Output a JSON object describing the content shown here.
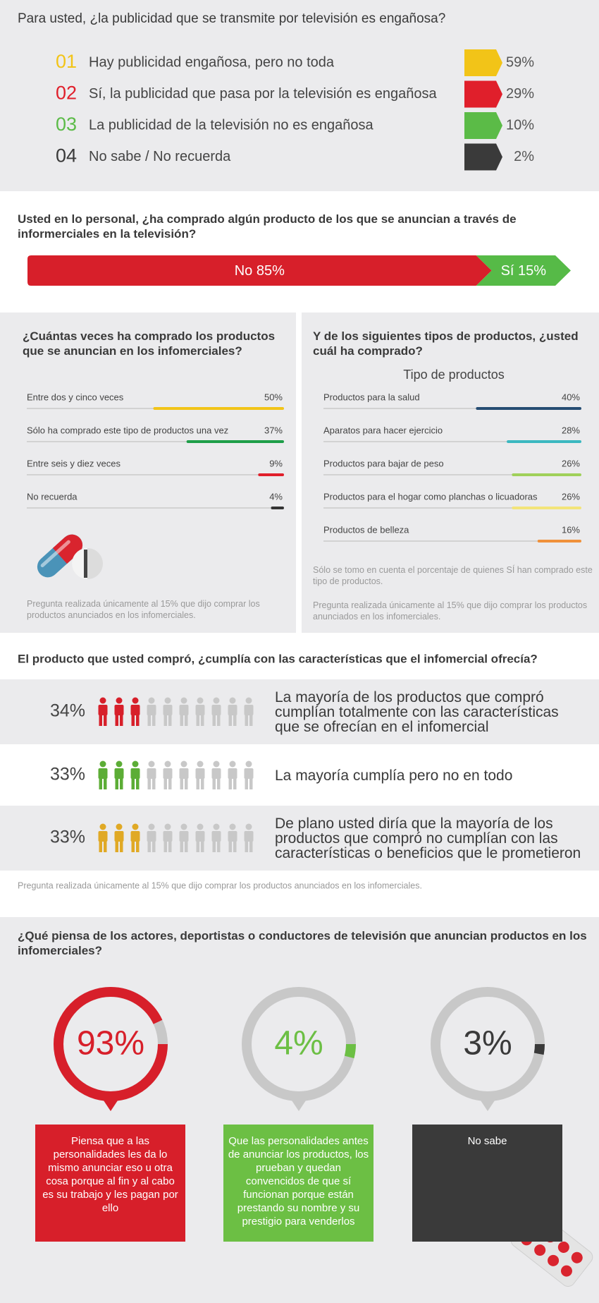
{
  "chart_data": [
    {
      "type": "ranked-list",
      "title": "Para usted, ¿la publicidad que se transmite por televisión es engañosa?",
      "numbers": [
        "01",
        "02",
        "03",
        "04"
      ],
      "categories": [
        "Hay publicidad engañosa, pero no toda",
        "Sí, la publicidad que pasa por la televisión es engañosa",
        "La publicidad de la televisión no es engañosa",
        "No sabe / No recuerda"
      ],
      "values": [
        59,
        29,
        10,
        2
      ],
      "value_labels": [
        "59%",
        "29%",
        "10%",
        "2%"
      ],
      "colors": [
        "#f2c418",
        "#e01f2b",
        "#5bbb47",
        "#3a3a3a"
      ]
    },
    {
      "type": "stacked-bar",
      "title": "Usted en lo personal, ¿ha comprado algún producto de los que se anuncian a través de informerciales en la televisión?",
      "xlim": [
        0,
        100
      ],
      "series": [
        {
          "color": "#d71f2a",
          "values": [
            85
          ],
          "value_labels": [
            "No 85%"
          ]
        },
        {
          "color": "#56ba47",
          "values": [
            15
          ],
          "value_labels": [
            "Sí 15%"
          ]
        }
      ]
    },
    {
      "type": "progress",
      "title": "¿Cuántas veces ha comprado los productos que se anuncian en los infomerciales?",
      "categories": [
        "Entre dos y cinco veces",
        "Sólo ha comprado este tipo de productos una vez",
        "Entre seis y diez veces",
        "No recuerda"
      ],
      "values": [
        50,
        37,
        9,
        4
      ],
      "value_labels": [
        "50%",
        "37%",
        "9%",
        "4%"
      ],
      "colors": [
        "#f2c418",
        "#1e9e48",
        "#e01f2b",
        "#333333"
      ],
      "xlim": [
        0,
        100
      ],
      "notes": [
        "Pregunta realizada únicamente al 15% que dijo comprar los productos anunciados en los infomerciales."
      ]
    },
    {
      "type": "progress",
      "title": "Y de los siguientes tipos de productos, ¿usted cuál ha comprado?",
      "subtitle": "Tipo de productos",
      "categories": [
        "Productos para la salud",
        "Aparatos para hacer ejercicio",
        "Productos para bajar de peso",
        "Productos para el hogar como planchas o licuadoras",
        "Productos de belleza"
      ],
      "values": [
        40,
        28,
        26,
        26,
        16
      ],
      "value_labels": [
        "40%",
        "28%",
        "26%",
        "26%",
        "16%"
      ],
      "colors": [
        "#264d73",
        "#3bb8c0",
        "#9fd05a",
        "#f3e47a",
        "#f0913a"
      ],
      "xlim": [
        0,
        100
      ],
      "notes": [
        "Sólo se tomo en cuenta el porcentaje de quienes SÍ han comprado este tipo de productos.",
        "Pregunta realizada únicamente al 15% que dijo comprar los productos anunciados en los infomerciales."
      ]
    },
    {
      "type": "pictogram",
      "title": "El producto que usted compró, ¿cumplía con las características que el infomercial ofrecía?",
      "categories": [
        "La mayoría de los productos que compró cumplían totalmente con las características que se ofrecían en el infomercial",
        "La mayoría cumplía pero no en todo",
        "De plano usted diría que la mayoría de los productos que compró no cumplían con las características o beneficios que le prometieron"
      ],
      "values": [
        34,
        33,
        33
      ],
      "value_labels": [
        "34%",
        "33%",
        "33%"
      ],
      "colors": [
        "#d71f2a",
        "#5cad36",
        "#e0a925"
      ],
      "xlim": [
        0,
        100
      ],
      "notes": [
        "Pregunta realizada únicamente al 15% que dijo comprar los productos anunciados en los infomerciales."
      ]
    },
    {
      "type": "donut",
      "title": "¿Qué piensa de los actores, deportistas o conductores de televisión que anuncian productos en los infomerciales?",
      "categories": [
        "Piensa que a las personalidades les da lo mismo anunciar eso u otra cosa porque al fin y al cabo es su trabajo y les pagan por ello",
        "Que las personalidades antes de anunciar los productos, los prueban y quedan convencidos de que sí funcionan porque están prestando su nombre y su prestigio para venderlos",
        "No sabe"
      ],
      "values": [
        93,
        4,
        3
      ],
      "value_labels": [
        "93%",
        "4%",
        "3%"
      ],
      "colors": [
        "#d71f2a",
        "#6cbf44",
        "#3a3a3a"
      ],
      "xlim": [
        0,
        100
      ]
    }
  ]
}
